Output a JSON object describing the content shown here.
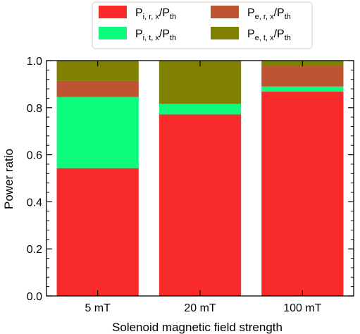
{
  "chart_data": {
    "type": "bar",
    "stacked": true,
    "categories": [
      "5 mT",
      "20 mT",
      "100 mT"
    ],
    "series": [
      {
        "name": "P_{i,r,x}/P_{th}",
        "color": "#f92a2a",
        "values": [
          0.543,
          0.771,
          0.868
        ]
      },
      {
        "name": "P_{i,t,x}/P_{th}",
        "color": "#0dfc7e",
        "values": [
          0.302,
          0.045,
          0.022
        ]
      },
      {
        "name": "P_{e,r,x}/P_{th}",
        "color": "#be5431",
        "values": [
          0.069,
          0.0,
          0.089
        ]
      },
      {
        "name": "P_{e,t,x}/P_{th}",
        "color": "#808000",
        "values": [
          0.086,
          0.184,
          0.021
        ]
      }
    ],
    "xlabel": "Solenoid magnetic field strength",
    "ylabel": "Power ratio",
    "ylim": [
      0,
      1.0
    ],
    "yticks": [
      "0.0",
      "0.2",
      "0.4",
      "0.6",
      "0.8",
      "1.0"
    ],
    "legend_position": "top",
    "legend": [
      {
        "main": "P",
        "sub1": "i, r, x",
        "mid": "/P",
        "sub2": "th",
        "color": "#f92a2a"
      },
      {
        "main": "P",
        "sub1": "e, r, x",
        "mid": "/P",
        "sub2": "th",
        "color": "#be5431"
      },
      {
        "main": "P",
        "sub1": "i, t, x",
        "mid": "/P",
        "sub2": "th",
        "color": "#0dfc7e"
      },
      {
        "main": "P",
        "sub1": "e, t, x",
        "mid": "/P",
        "sub2": "th",
        "color": "#808000"
      }
    ]
  }
}
